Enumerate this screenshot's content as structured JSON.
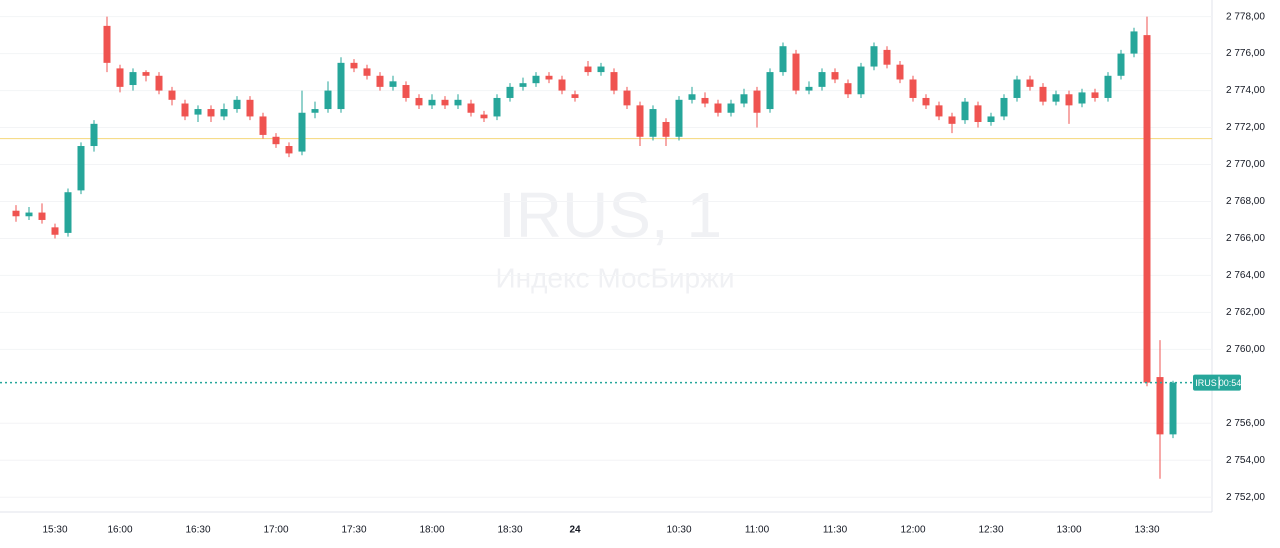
{
  "chart_data": {
    "type": "candlestick",
    "watermark_title": "IRUS, 1",
    "watermark_subtitle": "Индекс МосБиржи",
    "categories": [
      null,
      null,
      null,
      "15:30",
      null,
      null,
      null,
      null,
      "16:00",
      null,
      null,
      null,
      null,
      null,
      "16:30",
      null,
      null,
      null,
      null,
      null,
      "17:00",
      null,
      null,
      null,
      null,
      null,
      "17:30",
      null,
      null,
      null,
      null,
      null,
      "18:00",
      null,
      null,
      null,
      null,
      null,
      "18:30",
      null,
      null,
      null,
      null,
      "24",
      null,
      null,
      null,
      null,
      null,
      null,
      null,
      "10:30",
      null,
      null,
      null,
      null,
      null,
      "11:00",
      null,
      null,
      null,
      null,
      null,
      "11:30",
      null,
      null,
      null,
      null,
      null,
      "12:00",
      null,
      null,
      null,
      null,
      null,
      "12:30",
      null,
      null,
      null,
      null,
      null,
      "13:00",
      null,
      null,
      null,
      null,
      null,
      "13:30",
      null,
      null
    ],
    "open": [
      2767.5,
      2767.2,
      2767.4,
      2766.6,
      2766.3,
      2768.6,
      2771.0,
      2777.5,
      2775.2,
      2774.3,
      2775.0,
      2774.8,
      2774.0,
      2773.3,
      2772.7,
      2773.0,
      2772.6,
      2773.0,
      2773.5,
      2772.6,
      2771.5,
      2771.0,
      2770.7,
      2772.8,
      2773.0,
      2773.0,
      2775.5,
      2775.2,
      2774.8,
      2774.2,
      2774.3,
      2773.6,
      2773.2,
      2773.5,
      2773.2,
      2773.3,
      2772.7,
      2772.6,
      2773.6,
      2774.2,
      2774.4,
      2774.8,
      2774.6,
      2773.8,
      2775.3,
      2775.0,
      2775.0,
      2774.0,
      2773.2,
      2771.5,
      2772.3,
      2771.5,
      2773.5,
      2773.6,
      2773.3,
      2772.8,
      2773.3,
      2774.0,
      2773.0,
      2775.0,
      2776.0,
      2774.0,
      2774.2,
      2775.0,
      2774.4,
      2773.8,
      2775.3,
      2776.2,
      2775.4,
      2774.6,
      2773.6,
      2773.2,
      2772.6,
      2772.4,
      2773.2,
      2772.3,
      2772.6,
      2773.6,
      2774.6,
      2774.2,
      2773.4,
      2773.8,
      2773.3,
      2773.9,
      2773.6,
      2774.8,
      2776.0,
      2777.0,
      2758.5,
      2755.4
    ],
    "high": [
      2767.8,
      2767.7,
      2767.9,
      2766.8,
      2768.7,
      2771.2,
      2772.4,
      2778.0,
      2775.4,
      2775.2,
      2775.1,
      2775.0,
      2774.2,
      2773.5,
      2773.2,
      2773.2,
      2773.3,
      2773.7,
      2773.7,
      2772.8,
      2771.7,
      2771.2,
      2774.0,
      2773.4,
      2774.5,
      2775.8,
      2775.7,
      2775.4,
      2775.0,
      2774.8,
      2774.5,
      2773.8,
      2773.8,
      2773.7,
      2773.8,
      2773.5,
      2772.9,
      2773.8,
      2774.4,
      2774.7,
      2775.0,
      2775.0,
      2774.8,
      2774.0,
      2775.6,
      2775.5,
      2775.2,
      2774.2,
      2773.4,
      2773.2,
      2772.5,
      2773.7,
      2774.2,
      2773.9,
      2773.5,
      2773.5,
      2774.1,
      2774.2,
      2775.2,
      2776.6,
      2776.2,
      2774.5,
      2775.2,
      2775.2,
      2774.6,
      2775.5,
      2776.6,
      2776.4,
      2775.6,
      2774.8,
      2773.8,
      2773.4,
      2772.8,
      2773.6,
      2773.4,
      2772.8,
      2773.8,
      2774.8,
      2774.8,
      2774.4,
      2774.0,
      2774.0,
      2774.1,
      2774.1,
      2775.0,
      2776.2,
      2777.4,
      2778.0,
      2760.5,
      2758.3
    ],
    "low": [
      2766.9,
      2767.0,
      2766.8,
      2766.0,
      2766.1,
      2768.4,
      2770.7,
      2775.0,
      2773.9,
      2774.0,
      2774.5,
      2773.8,
      2773.2,
      2772.4,
      2772.3,
      2772.3,
      2772.4,
      2772.8,
      2772.4,
      2771.4,
      2770.9,
      2770.4,
      2770.5,
      2772.5,
      2772.8,
      2772.8,
      2775.0,
      2774.6,
      2774.0,
      2774.0,
      2773.4,
      2773.0,
      2773.0,
      2773.0,
      2773.0,
      2772.6,
      2772.3,
      2772.4,
      2773.4,
      2774.0,
      2774.2,
      2774.4,
      2773.8,
      2773.4,
      2774.8,
      2774.8,
      2773.8,
      2773.0,
      2771.0,
      2771.3,
      2771.0,
      2771.3,
      2773.3,
      2773.1,
      2772.6,
      2772.6,
      2773.1,
      2772.0,
      2772.8,
      2774.8,
      2773.8,
      2773.8,
      2774.0,
      2774.4,
      2773.6,
      2773.6,
      2775.1,
      2775.2,
      2774.4,
      2773.4,
      2773.0,
      2772.4,
      2771.7,
      2772.2,
      2772.0,
      2772.1,
      2772.4,
      2773.4,
      2774.0,
      2773.2,
      2773.2,
      2772.2,
      2773.1,
      2773.4,
      2773.4,
      2774.6,
      2775.8,
      2758.0,
      2753.0,
      2755.2
    ],
    "close": [
      2767.2,
      2767.4,
      2767.0,
      2766.2,
      2768.5,
      2771.0,
      2772.2,
      2775.5,
      2774.2,
      2775.0,
      2774.8,
      2774.0,
      2773.5,
      2772.6,
      2773.0,
      2772.6,
      2773.0,
      2773.5,
      2772.6,
      2771.6,
      2771.1,
      2770.6,
      2772.8,
      2773.0,
      2774.0,
      2775.5,
      2775.2,
      2774.8,
      2774.2,
      2774.5,
      2773.6,
      2773.2,
      2773.5,
      2773.2,
      2773.5,
      2772.8,
      2772.5,
      2773.6,
      2774.2,
      2774.4,
      2774.8,
      2774.6,
      2774.0,
      2773.6,
      2775.0,
      2775.3,
      2774.0,
      2773.2,
      2771.5,
      2773.0,
      2771.5,
      2773.5,
      2773.8,
      2773.3,
      2772.8,
      2773.3,
      2773.8,
      2772.8,
      2775.0,
      2776.4,
      2774.0,
      2774.2,
      2775.0,
      2774.6,
      2773.8,
      2775.3,
      2776.4,
      2775.4,
      2774.6,
      2773.6,
      2773.2,
      2772.6,
      2772.2,
      2773.4,
      2772.3,
      2772.6,
      2773.6,
      2774.6,
      2774.2,
      2773.4,
      2773.8,
      2773.2,
      2773.9,
      2773.6,
      2774.8,
      2776.0,
      2777.2,
      2758.2,
      2755.4,
      2758.2
    ],
    "up_color": "#26a69a",
    "down_color": "#ef5350",
    "reference_line": 2771.4,
    "reference_color": "#f5d77a",
    "ylim": [
      2751.2,
      2778.9
    ],
    "yticks": [
      {
        "value": 2752,
        "label": "2 752,00"
      },
      {
        "value": 2754,
        "label": "2 754,00"
      },
      {
        "value": 2756,
        "label": "2 756,00"
      },
      {
        "value": 2760,
        "label": "2 760,00"
      },
      {
        "value": 2762,
        "label": "2 762,00"
      },
      {
        "value": 2764,
        "label": "2 764,00"
      },
      {
        "value": 2766,
        "label": "2 766,00"
      },
      {
        "value": 2768,
        "label": "2 768,00"
      },
      {
        "value": 2770,
        "label": "2 770,00"
      },
      {
        "value": 2772,
        "label": "2 772,00"
      },
      {
        "value": 2774,
        "label": "2 774,00"
      },
      {
        "value": 2776,
        "label": "2 776,00"
      },
      {
        "value": 2778,
        "label": "2 778,00"
      }
    ],
    "grid": true,
    "last_price_tag": {
      "symbol": "IRUS",
      "countdown": "00:54"
    }
  }
}
